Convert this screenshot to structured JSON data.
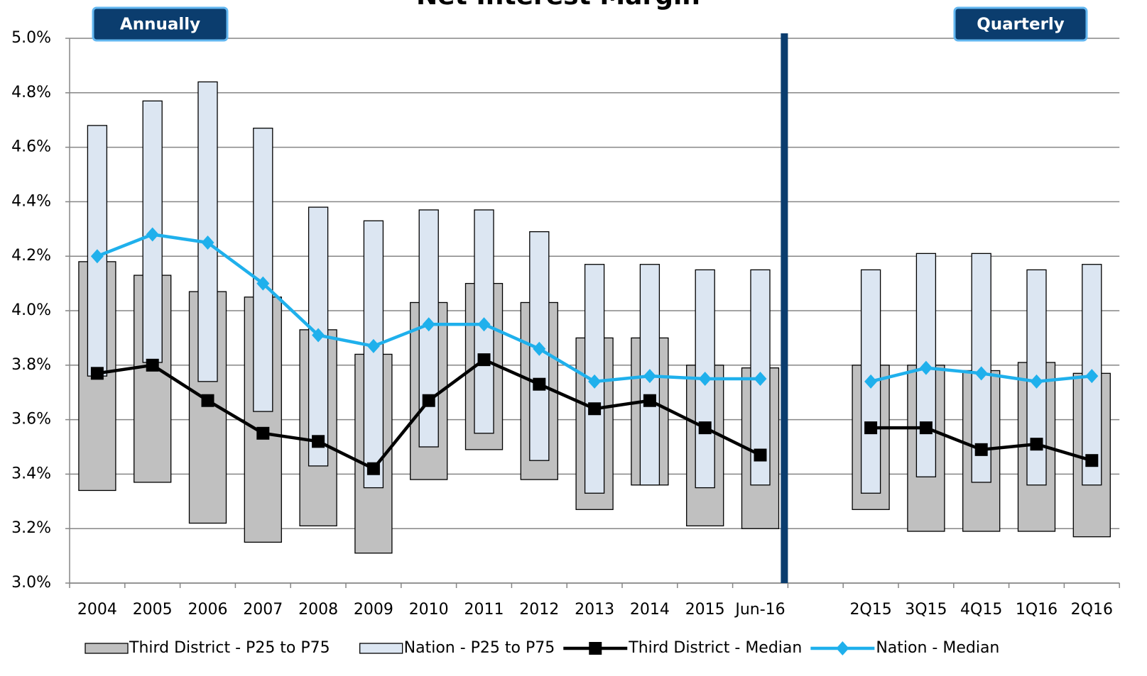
{
  "chart_data": {
    "type": "range-line",
    "title": "Net Interest Margin",
    "annotations": [
      "Annually",
      "Quarterly"
    ],
    "categories": [
      "2004",
      "2005",
      "2006",
      "2007",
      "2008",
      "2009",
      "2010",
      "2011",
      "2012",
      "2013",
      "2014",
      "2015",
      "Jun-16",
      null,
      "2Q15",
      "3Q15",
      "4Q15",
      "1Q16",
      "2Q16"
    ],
    "ylim": [
      3.0,
      5.0
    ],
    "yticks": [
      {
        "value": 3.0,
        "label": "3.0%"
      },
      {
        "value": 3.2,
        "label": "3.2%"
      },
      {
        "value": 3.4,
        "label": "3.4%"
      },
      {
        "value": 3.6,
        "label": "3.6%"
      },
      {
        "value": 3.8,
        "label": "3.8%"
      },
      {
        "value": 4.0,
        "label": "4.0%"
      },
      {
        "value": 4.2,
        "label": "4.2%"
      },
      {
        "value": 4.4,
        "label": "4.4%"
      },
      {
        "value": 4.6,
        "label": "4.6%"
      },
      {
        "value": 4.8,
        "label": "4.8%"
      },
      {
        "value": 5.0,
        "label": "5.0%"
      }
    ],
    "grid": true,
    "legend": "bottom",
    "series": [
      {
        "name": "Third District - P25 to P75",
        "kind": "range",
        "color": "#c0c0c0",
        "low": [
          3.34,
          3.37,
          3.22,
          3.15,
          3.21,
          3.11,
          3.38,
          3.49,
          3.38,
          3.27,
          3.36,
          3.21,
          3.2,
          null,
          3.27,
          3.19,
          3.19,
          3.19,
          3.17
        ],
        "high": [
          4.18,
          4.13,
          4.07,
          4.05,
          3.93,
          3.84,
          4.03,
          4.1,
          4.03,
          3.9,
          3.9,
          3.8,
          3.79,
          null,
          3.8,
          3.8,
          3.78,
          3.81,
          3.77
        ]
      },
      {
        "name": "Nation - P25 to P75",
        "kind": "range",
        "color": "#dce6f2",
        "low": [
          3.76,
          3.81,
          3.74,
          3.63,
          3.43,
          3.35,
          3.5,
          3.55,
          3.45,
          3.33,
          3.36,
          3.35,
          3.36,
          null,
          3.33,
          3.39,
          3.37,
          3.36,
          3.36
        ],
        "high": [
          4.68,
          4.77,
          4.84,
          4.67,
          4.38,
          4.33,
          4.37,
          4.37,
          4.29,
          4.17,
          4.17,
          4.15,
          4.15,
          null,
          4.15,
          4.21,
          4.21,
          4.15,
          4.17
        ]
      },
      {
        "name": "Third District - Median",
        "kind": "line",
        "marker": "square",
        "color": "#000000",
        "values": [
          3.77,
          3.8,
          3.67,
          3.55,
          3.52,
          3.42,
          3.67,
          3.82,
          3.73,
          3.64,
          3.67,
          3.57,
          3.47,
          null,
          3.57,
          3.57,
          3.49,
          3.51,
          3.45
        ]
      },
      {
        "name": "Nation - Median",
        "kind": "line",
        "marker": "diamond",
        "color": "#1fb0ec",
        "values": [
          4.2,
          4.28,
          4.25,
          4.1,
          3.91,
          3.87,
          3.95,
          3.95,
          3.86,
          3.74,
          3.76,
          3.75,
          3.75,
          null,
          3.74,
          3.79,
          3.77,
          3.74,
          3.76
        ]
      }
    ]
  }
}
